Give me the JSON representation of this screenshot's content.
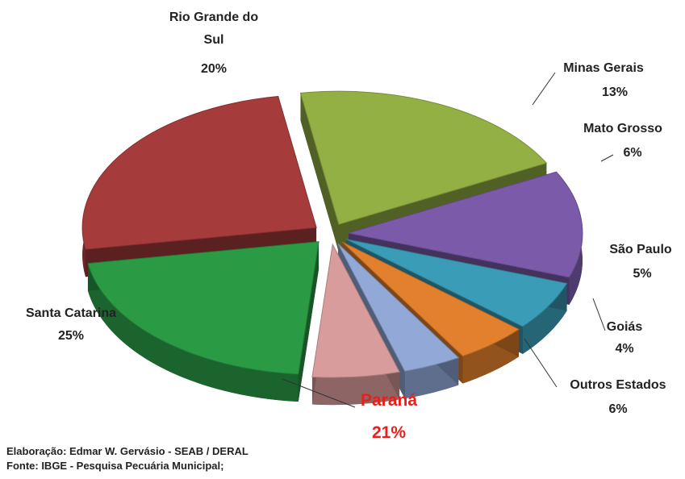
{
  "chart_data": {
    "type": "pie3d",
    "categories": [
      "Paraná",
      "Santa Catarina",
      "Rio Grande do Sul",
      "Minas Gerais",
      "Mato Grosso",
      "São Paulo",
      "Goiás",
      "Outros Estados"
    ],
    "values": [
      21,
      25,
      20,
      13,
      6,
      5,
      4,
      6
    ],
    "value_labels": [
      "21%",
      "25%",
      "20%",
      "13%",
      "6%",
      "5%",
      "4%",
      "6%"
    ],
    "colors": [
      "#2a9a45",
      "#a63b3b",
      "#93b045",
      "#7b5ba9",
      "#3a9cb6",
      "#e2802d",
      "#92a9d8",
      "#d99c9c"
    ],
    "credit": "Elaboração: Edmar W. Gervásio - SEAB / DERAL",
    "source": "Fonte: IBGE - Pesquisa Pecuária Municipal;"
  }
}
